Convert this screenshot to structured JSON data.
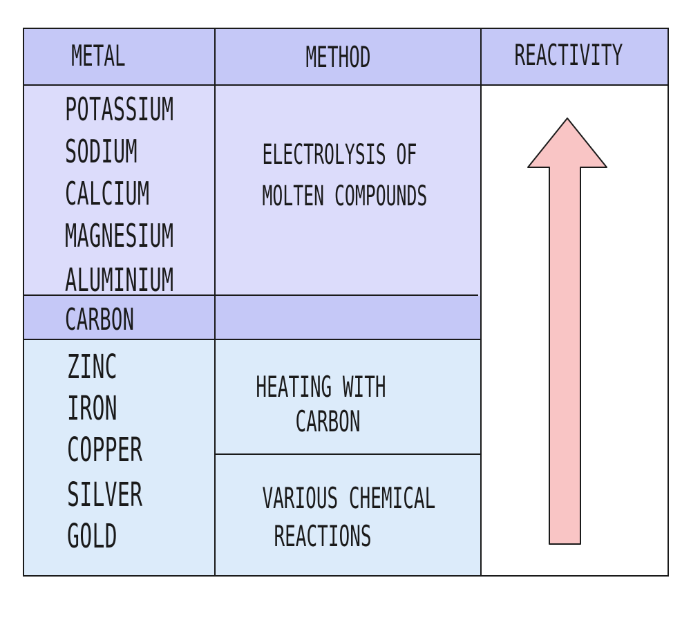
{
  "headers": {
    "metal": "METAL",
    "method": "METHOD",
    "reactivity": "REACTIVITY"
  },
  "top_metals": [
    "POTASSIUM",
    "SODIUM",
    "CALCIUM",
    "MAGNESIUM",
    "ALUMINIUM"
  ],
  "carbon_label": "CARBON",
  "bottom_metals": [
    "ZINC",
    "IRON",
    "COPPER",
    "SILVER",
    "GOLD"
  ],
  "methods": {
    "electrolysis": [
      "ELECTROLYSIS OF",
      "MOLTEN COMPOUNDS"
    ],
    "heating": [
      "HEATING WITH",
      "CARBON"
    ],
    "various": [
      "VARIOUS CHEMICAL",
      "REACTIONS"
    ]
  },
  "colors": {
    "header": "#c5c8f7",
    "top_band": "#dcdcfb",
    "carbon_band": "#c5c8f7",
    "bottom_band": "#dcebfa",
    "arrow_fill": "#f9c5c5",
    "outline": "#1a1a1a"
  },
  "arrow_direction": "up",
  "icons": [
    "arrow-up-icon"
  ]
}
